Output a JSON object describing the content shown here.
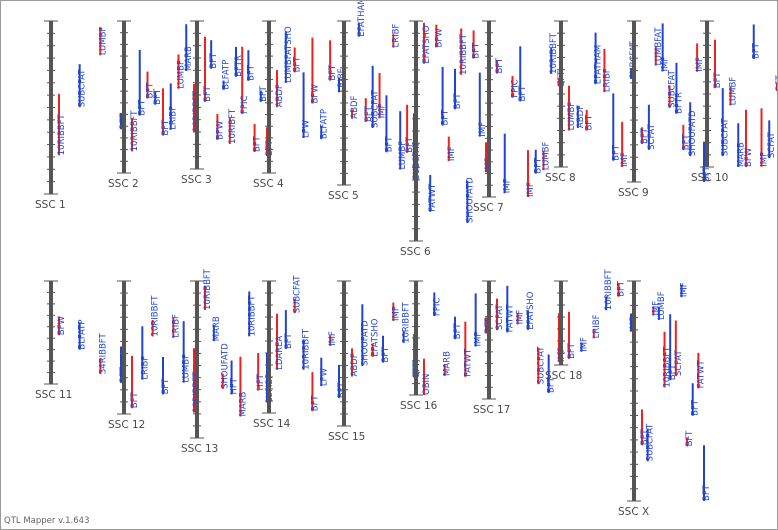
{
  "app": {
    "version_label": "QTL Mapper v.1.643"
  },
  "colors": {
    "chromosome": "#555555",
    "qtl_blue": "#2244cc",
    "qtl_red": "#ee2222"
  },
  "chromosomes": [
    {
      "id": "ssc1",
      "label": "SSC 1",
      "qtls": [
        {
          "label": "10RIBBFT",
          "color": "blue"
        },
        {
          "label": "SUBCFAT",
          "color": "blue"
        },
        {
          "label": "LUMBF",
          "color": "blue"
        },
        {
          "label": "BFT",
          "color": "blue"
        }
      ]
    },
    {
      "id": "ssc2",
      "label": "SSC 2",
      "qtls": [
        {
          "label": "10RIBBFT",
          "color": "blue"
        },
        {
          "label": "BFT",
          "color": "blue"
        },
        {
          "label": "BFT",
          "color": "blue"
        },
        {
          "label": "BFT",
          "color": "blue"
        },
        {
          "label": "BFT",
          "color": "blue"
        },
        {
          "label": "LRIBF",
          "color": "blue"
        },
        {
          "label": "LUMBF",
          "color": "blue"
        },
        {
          "label": "MARB",
          "color": "blue"
        },
        {
          "label": "10RIBBFT",
          "color": "blue"
        }
      ]
    },
    {
      "id": "ssc3",
      "label": "SSC 3",
      "qtls": [
        {
          "label": "BFT",
          "color": "blue"
        },
        {
          "label": "BFT",
          "color": "blue"
        },
        {
          "label": "BFW",
          "color": "blue"
        },
        {
          "label": "BLFATP",
          "color": "blue"
        },
        {
          "label": "10RIBFT",
          "color": "blue"
        },
        {
          "label": "BFTR",
          "color": "blue"
        },
        {
          "label": "FPIC",
          "color": "blue"
        },
        {
          "label": "BFT",
          "color": "blue"
        },
        {
          "label": "BFT",
          "color": "blue"
        },
        {
          "label": "BFT",
          "color": "blue"
        },
        {
          "label": "BFT",
          "color": "blue"
        }
      ]
    },
    {
      "id": "ssc4",
      "label": "SSC 4",
      "qtls": [
        {
          "label": "ABDF",
          "color": "blue"
        },
        {
          "label": "LUMBFATSHO",
          "color": "blue"
        },
        {
          "label": "BFT",
          "color": "blue"
        },
        {
          "label": "LFW",
          "color": "blue"
        },
        {
          "label": "BFW",
          "color": "blue"
        },
        {
          "label": "BLFATP",
          "color": "blue"
        },
        {
          "label": "BFT",
          "color": "blue"
        },
        {
          "label": "LRIBF",
          "color": "blue"
        }
      ]
    },
    {
      "id": "ssc5",
      "label": "SSC 5",
      "qtls": [
        {
          "label": "ABDF",
          "color": "blue"
        },
        {
          "label": "EFATHAM",
          "color": "blue"
        },
        {
          "label": "BFT",
          "color": "blue"
        },
        {
          "label": "SUBCFAT",
          "color": "blue"
        },
        {
          "label": "IMF",
          "color": "blue"
        },
        {
          "label": "BFT",
          "color": "blue"
        },
        {
          "label": "LRIBF",
          "color": "blue"
        },
        {
          "label": "LUMBF",
          "color": "blue"
        },
        {
          "label": "BFT",
          "color": "blue"
        },
        {
          "label": "SUBCFAT",
          "color": "blue"
        }
      ]
    },
    {
      "id": "ssc6",
      "label": "SSC 6",
      "qtls": [
        {
          "label": "EFATSHO",
          "color": "blue"
        },
        {
          "label": "FATWT",
          "color": "blue"
        },
        {
          "label": "BFW",
          "color": "blue"
        },
        {
          "label": "BFT",
          "color": "blue"
        },
        {
          "label": "IMF",
          "color": "blue"
        },
        {
          "label": "BFT",
          "color": "blue"
        },
        {
          "label": "10RIBBFT",
          "color": "blue"
        },
        {
          "label": "SHOUFATD",
          "color": "blue"
        },
        {
          "label": "BFT",
          "color": "blue"
        },
        {
          "label": "IMF",
          "color": "blue"
        },
        {
          "label": "IMF",
          "color": "blue"
        }
      ]
    },
    {
      "id": "ssc7",
      "label": "SSC 7",
      "qtls": [
        {
          "label": "BFT",
          "color": "blue"
        },
        {
          "label": "IMF",
          "color": "blue"
        },
        {
          "label": "FPIC",
          "color": "blue"
        },
        {
          "label": "BFT",
          "color": "blue"
        },
        {
          "label": "IMF",
          "color": "blue"
        },
        {
          "label": "BFT",
          "color": "blue"
        },
        {
          "label": "LUMBF",
          "color": "blue"
        },
        {
          "label": "10RIBBFT",
          "color": "blue"
        },
        {
          "label": "BFT",
          "color": "blue"
        }
      ]
    },
    {
      "id": "ssc8",
      "label": "SSC 8",
      "qtls": [
        {
          "label": "LUMBF",
          "color": "blue"
        },
        {
          "label": "ABDF",
          "color": "blue"
        },
        {
          "label": "BFT",
          "color": "blue"
        },
        {
          "label": "EFATHAM",
          "color": "blue"
        },
        {
          "label": "LRIBF",
          "color": "blue"
        },
        {
          "label": "BFT",
          "color": "blue"
        },
        {
          "label": "IMF",
          "color": "blue"
        },
        {
          "label": "SUBCFAT",
          "color": "blue"
        }
      ]
    },
    {
      "id": "ssc9",
      "label": "SSC 9",
      "qtls": [
        {
          "label": "BFT",
          "color": "blue"
        },
        {
          "label": "SCFAT",
          "color": "blue"
        },
        {
          "label": "LUMBFAT",
          "color": "blue"
        },
        {
          "label": "IMF",
          "color": "blue"
        },
        {
          "label": "SUBCFAT",
          "color": "blue"
        },
        {
          "label": "BFTR",
          "color": "blue"
        },
        {
          "label": "BFT",
          "color": "blue"
        },
        {
          "label": "SHOUFATD",
          "color": "blue"
        },
        {
          "label": "IMF",
          "color": "blue"
        },
        {
          "label": "BFT",
          "color": "blue"
        }
      ]
    },
    {
      "id": "ssc10",
      "label": "SSC 10",
      "qtls": [
        {
          "label": "BFT",
          "color": "blue"
        },
        {
          "label": "SUBCFAT",
          "color": "blue"
        },
        {
          "label": "LUMBF",
          "color": "blue"
        },
        {
          "label": "MARB",
          "color": "blue"
        },
        {
          "label": "BFW",
          "color": "blue"
        },
        {
          "label": "BFT",
          "color": "blue"
        },
        {
          "label": "IMF",
          "color": "blue"
        },
        {
          "label": "SCFAT",
          "color": "blue"
        },
        {
          "label": "BFT",
          "color": "blue"
        }
      ]
    },
    {
      "id": "ssc11",
      "label": "SSC 11",
      "qtls": [
        {
          "label": "BFW",
          "color": "blue"
        },
        {
          "label": "BLFATP",
          "color": "blue"
        },
        {
          "label": "34RIBBFT",
          "color": "blue"
        },
        {
          "label": "BFT",
          "color": "blue"
        }
      ]
    },
    {
      "id": "ssc12",
      "label": "SSC 12",
      "qtls": [
        {
          "label": "BFT",
          "color": "blue"
        },
        {
          "label": "LRIBF",
          "color": "blue"
        },
        {
          "label": "10RIBBFT",
          "color": "blue"
        },
        {
          "label": "BFT",
          "color": "blue"
        },
        {
          "label": "LRIBF",
          "color": "blue"
        },
        {
          "label": "LUMBF",
          "color": "blue"
        },
        {
          "label": "10RIBBFT",
          "color": "blue"
        }
      ]
    },
    {
      "id": "ssc13",
      "label": "SSC 13",
      "qtls": [
        {
          "label": "10RIBBFT",
          "color": "blue"
        },
        {
          "label": "MARB",
          "color": "blue"
        },
        {
          "label": "SHOUFATD",
          "color": "blue"
        },
        {
          "label": "HFT",
          "color": "blue"
        },
        {
          "label": "MARB",
          "color": "blue"
        },
        {
          "label": "10RIBBFT",
          "color": "blue"
        },
        {
          "label": "HFT",
          "color": "blue"
        },
        {
          "label": "LUMBF",
          "color": "blue"
        }
      ]
    },
    {
      "id": "ssc14",
      "label": "SSC 14",
      "qtls": [
        {
          "label": "LDAREA",
          "color": "blue"
        },
        {
          "label": "BFT",
          "color": "blue"
        },
        {
          "label": "SUBCFAT",
          "color": "blue"
        },
        {
          "label": "10RIBBFT",
          "color": "blue"
        },
        {
          "label": "BFT",
          "color": "blue"
        },
        {
          "label": "LFW",
          "color": "blue"
        },
        {
          "label": "IMF",
          "color": "blue"
        },
        {
          "label": "BFT",
          "color": "blue"
        }
      ]
    },
    {
      "id": "ssc15",
      "label": "SSC 15",
      "qtls": [
        {
          "label": "ABDF",
          "color": "blue"
        },
        {
          "label": "SHOUFATD",
          "color": "blue"
        },
        {
          "label": "EFATSHO",
          "color": "blue"
        },
        {
          "label": "BFT",
          "color": "blue"
        },
        {
          "label": "IMF",
          "color": "blue"
        },
        {
          "label": "10RIBBFT",
          "color": "blue"
        },
        {
          "label": "BFT",
          "color": "blue"
        }
      ]
    },
    {
      "id": "ssc16",
      "label": "SSC 16",
      "qtls": [
        {
          "label": "OBIN",
          "color": "blue"
        },
        {
          "label": "FPIC",
          "color": "blue"
        },
        {
          "label": "MARB",
          "color": "blue"
        },
        {
          "label": "BFT",
          "color": "blue"
        },
        {
          "label": "FATWT",
          "color": "blue"
        },
        {
          "label": "IMF",
          "color": "blue"
        },
        {
          "label": "BFT",
          "color": "blue"
        }
      ]
    },
    {
      "id": "ssc17",
      "label": "SSC 17",
      "qtls": [
        {
          "label": "SCFAT",
          "color": "blue"
        },
        {
          "label": "FATWT",
          "color": "blue"
        },
        {
          "label": "IMF",
          "color": "blue"
        },
        {
          "label": "EFATSHO",
          "color": "blue"
        },
        {
          "label": "SUBCFAT",
          "color": "blue"
        },
        {
          "label": "BFT",
          "color": "blue"
        },
        {
          "label": "IMF",
          "color": "blue"
        }
      ]
    },
    {
      "id": "ssc18",
      "label": "SSC 18",
      "qtls": [
        {
          "label": "BFT",
          "color": "blue"
        },
        {
          "label": "IMF",
          "color": "blue"
        },
        {
          "label": "LRIBF",
          "color": "blue"
        },
        {
          "label": "10RIBBFT",
          "color": "blue"
        },
        {
          "label": "BFT",
          "color": "blue"
        },
        {
          "label": "IMF",
          "color": "blue"
        }
      ]
    },
    {
      "id": "sscx",
      "label": "SSC X",
      "qtls": [
        {
          "label": "BFT",
          "color": "blue"
        },
        {
          "label": "SUBCFAT",
          "color": "blue"
        },
        {
          "label": "IMF",
          "color": "blue"
        },
        {
          "label": "LUMBF",
          "color": "blue"
        },
        {
          "label": "10RIBBFT",
          "color": "blue"
        },
        {
          "label": "BFT",
          "color": "blue"
        },
        {
          "label": "SCFAT",
          "color": "blue"
        },
        {
          "label": "IMF",
          "color": "blue"
        },
        {
          "label": "BFT",
          "color": "blue"
        },
        {
          "label": "BFT",
          "color": "blue"
        },
        {
          "label": "FATWT",
          "color": "blue"
        },
        {
          "label": "BFT",
          "color": "blue"
        }
      ]
    }
  ]
}
